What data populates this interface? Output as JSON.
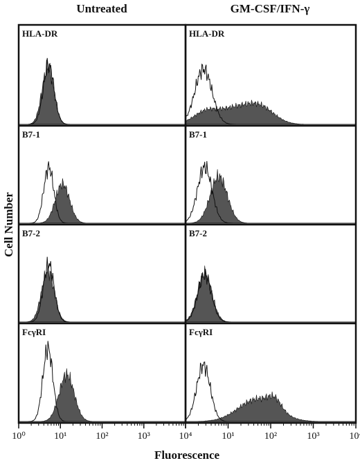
{
  "column_headers": [
    "Untreated",
    "GM-CSF/IFN-γ"
  ],
  "panels": [
    [
      "HLA-DR",
      "B7-1",
      "B7-2",
      "FcγRI"
    ],
    [
      "HLA-DR",
      "B7-1",
      "B7-2",
      "FcγRI"
    ]
  ],
  "y_axis_label": "Cell Number",
  "x_axis": {
    "label": "Fluorescence",
    "scale": "log",
    "xlim": [
      1,
      10000
    ],
    "xticks": [
      {
        "value": 1,
        "label": "10⁰"
      },
      {
        "value": 10,
        "label": "10¹"
      },
      {
        "value": 100,
        "label": "10²"
      },
      {
        "value": 1000,
        "label": "10³"
      },
      {
        "value": 10000,
        "label": "10⁴"
      }
    ]
  }
}
